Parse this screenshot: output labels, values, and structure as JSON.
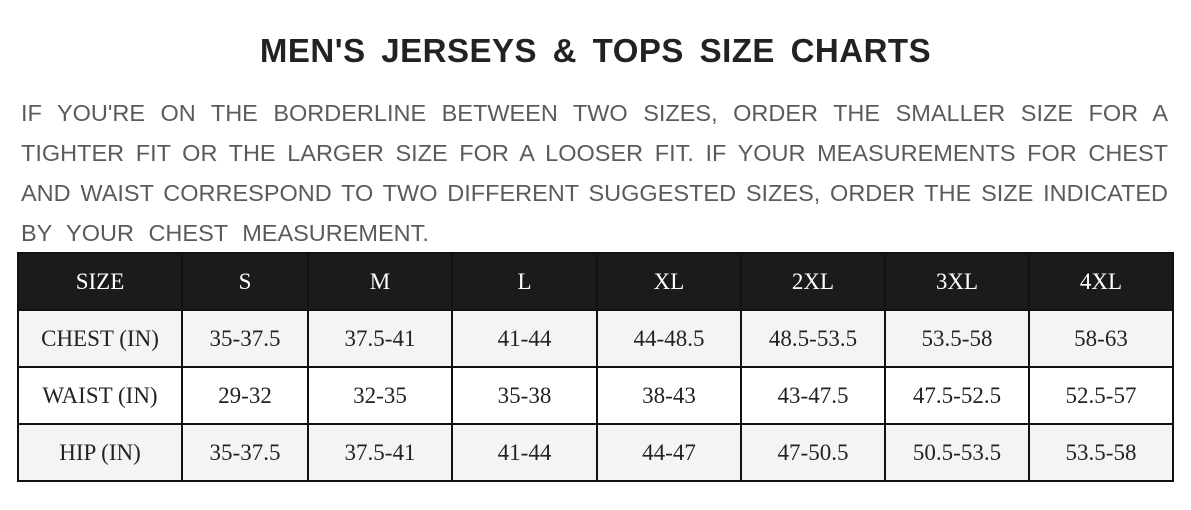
{
  "title": "MEN'S JERSEYS & TOPS SIZE CHARTS",
  "description_lines": [
    "IF YOU'RE ON THE BORDERLINE BETWEEN TWO SIZES, ORDER THE SMALLER SIZE FOR A",
    "TIGHTER FIT OR THE LARGER SIZE FOR A LOOSER FIT. IF YOUR MEASUREMENTS FOR CHEST",
    "AND WAIST CORRESPOND TO TWO DIFFERENT SUGGESTED SIZES, ORDER THE SIZE INDICATED",
    "BY YOUR CHEST MEASUREMENT."
  ],
  "table": {
    "headers": [
      "SIZE",
      "S",
      "M",
      "L",
      "XL",
      "2XL",
      "3XL",
      "4XL"
    ],
    "rows": [
      [
        "CHEST (IN)",
        "35-37.5",
        "37.5-41",
        "41-44",
        "44-48.5",
        "48.5-53.5",
        "53.5-58",
        "58-63"
      ],
      [
        "WAIST (IN)",
        "29-32",
        "32-35",
        "35-38",
        "38-43",
        "43-47.5",
        "47.5-52.5",
        "52.5-57"
      ],
      [
        "HIP (IN)",
        "35-37.5",
        "37.5-41",
        "41-44",
        "44-47",
        "47-50.5",
        "50.5-53.5",
        "53.5-58"
      ]
    ]
  },
  "colors": {
    "header_bg": "#1b1b1b",
    "stripe_bg": "#f3f4f6",
    "text": "#5b5b5b"
  }
}
